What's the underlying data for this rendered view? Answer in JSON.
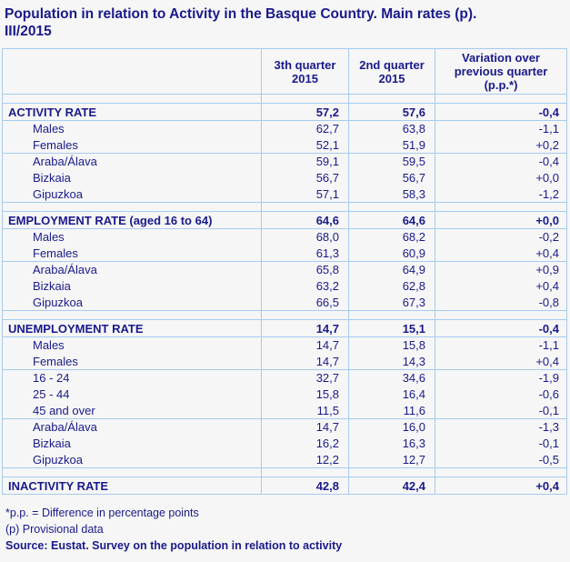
{
  "colors": {
    "text": "#1A1A8C",
    "border": "#A5CBF1",
    "background": "#F6F6F6"
  },
  "page": {
    "title_lines": [
      "Population in relation to Activity in the Basque Country. Main rates (p).",
      "III/2015"
    ]
  },
  "chart_data": {
    "type": "table",
    "title": "Population in relation to Activity in the Basque Country. Main rates (p). III/2015",
    "columns": [
      "",
      "3th quarter 2015",
      "2nd quarter 2015",
      "Variation over previous quarter (p.p.*)"
    ],
    "sections": [
      {
        "name": "activity-rate",
        "rows": [
          {
            "label": "ACTIVITY RATE",
            "style": "section",
            "separator_above": false,
            "values": [
              "57,2",
              "57,6",
              "-0,4"
            ]
          },
          {
            "label": "Males",
            "style": "sub",
            "separator_above": false,
            "values": [
              "62,7",
              "63,8",
              "-1,1"
            ]
          },
          {
            "label": "Females",
            "style": "sub",
            "separator_above": false,
            "values": [
              "52,1",
              "51,9",
              "+0,2"
            ]
          },
          {
            "label": "Araba/Álava",
            "style": "sub",
            "separator_above": true,
            "values": [
              "59,1",
              "59,5",
              "-0,4"
            ]
          },
          {
            "label": "Bizkaia",
            "style": "sub",
            "separator_above": false,
            "values": [
              "56,7",
              "56,7",
              "+0,0"
            ]
          },
          {
            "label": "Gipuzkoa",
            "style": "sub",
            "separator_above": false,
            "values": [
              "57,1",
              "58,3",
              "-1,2"
            ]
          }
        ]
      },
      {
        "name": "employment-rate",
        "rows": [
          {
            "label": "EMPLOYMENT RATE (aged 16 to 64)",
            "style": "section",
            "separator_above": false,
            "values": [
              "64,6",
              "64,6",
              "+0,0"
            ]
          },
          {
            "label": "Males",
            "style": "sub",
            "separator_above": false,
            "values": [
              "68,0",
              "68,2",
              "-0,2"
            ]
          },
          {
            "label": "Females",
            "style": "sub",
            "separator_above": false,
            "values": [
              "61,3",
              "60,9",
              "+0,4"
            ]
          },
          {
            "label": "Araba/Álava",
            "style": "sub",
            "separator_above": true,
            "values": [
              "65,8",
              "64,9",
              "+0,9"
            ]
          },
          {
            "label": "Bizkaia",
            "style": "sub",
            "separator_above": false,
            "values": [
              "63,2",
              "62,8",
              "+0,4"
            ]
          },
          {
            "label": "Gipuzkoa",
            "style": "sub",
            "separator_above": false,
            "values": [
              "66,5",
              "67,3",
              "-0,8"
            ]
          }
        ]
      },
      {
        "name": "unemployment-rate",
        "rows": [
          {
            "label": "UNEMPLOYMENT RATE",
            "style": "section",
            "separator_above": false,
            "values": [
              "14,7",
              "15,1",
              "-0,4"
            ]
          },
          {
            "label": "Males",
            "style": "sub",
            "separator_above": false,
            "values": [
              "14,7",
              "15,8",
              "-1,1"
            ]
          },
          {
            "label": "Females",
            "style": "sub",
            "separator_above": false,
            "values": [
              "14,7",
              "14,3",
              "+0,4"
            ]
          },
          {
            "label": "16 - 24",
            "style": "sub",
            "separator_above": true,
            "values": [
              "32,7",
              "34,6",
              "-1,9"
            ]
          },
          {
            "label": "25 - 44",
            "style": "sub",
            "separator_above": false,
            "values": [
              "15,8",
              "16,4",
              "-0,6"
            ]
          },
          {
            "label": "45 and over",
            "style": "sub",
            "separator_above": false,
            "values": [
              "11,5",
              "11,6",
              "-0,1"
            ]
          },
          {
            "label": "Araba/Álava",
            "style": "sub",
            "separator_above": true,
            "values": [
              "14,7",
              "16,0",
              "-1,3"
            ]
          },
          {
            "label": "Bizkaia",
            "style": "sub",
            "separator_above": false,
            "values": [
              "16,2",
              "16,3",
              "-0,1"
            ]
          },
          {
            "label": "Gipuzkoa",
            "style": "sub",
            "separator_above": false,
            "values": [
              "12,2",
              "12,7",
              "-0,5"
            ]
          }
        ]
      },
      {
        "name": "inactivity-rate",
        "rows": [
          {
            "label": "INACTIVITY RATE",
            "style": "section",
            "separator_above": false,
            "values": [
              "42,8",
              "42,4",
              "+0,4"
            ]
          }
        ]
      }
    ]
  },
  "footnotes": [
    "*p.p. = Difference in percentage points",
    "(p) Provisional data",
    "Source: Eustat. Survey on the population in relation to activity"
  ]
}
